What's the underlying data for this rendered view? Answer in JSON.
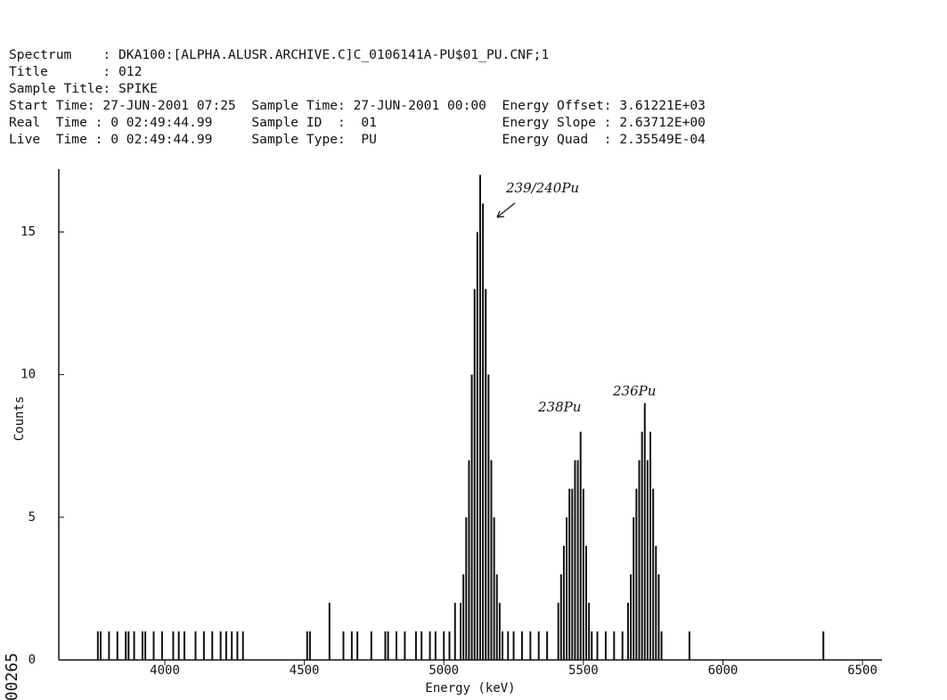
{
  "chart_data": {
    "type": "spectrum",
    "header_lines": [
      "Spectrum    : DKA100:[ALPHA.ALUSR.ARCHIVE.C]C_0106141A-PU$01_PU.CNF;1",
      "Title       : 012",
      "Sample Title: SPIKE",
      "Start Time: 27-JUN-2001 07:25  Sample Time: 27-JUN-2001 00:00  Energy Offset: 3.61221E+03",
      "Real  Time : 0 02:49:44.99     Sample ID  :  01                Energy Slope : 2.63712E+00",
      "Live  Time : 0 02:49:44.99     Sample Type:  PU                Energy Quad  : 2.35549E-04"
    ],
    "x_label": "Energy (keV)",
    "y_label": "Counts",
    "annotations": [
      "239/240Pu",
      "238Pu",
      "236Pu",
      "00265"
    ],
    "color": "#111111",
    "xlim": [
      3620,
      6570
    ],
    "ylim": [
      0,
      17.2
    ],
    "xticks": [
      4000,
      4500,
      5000,
      5500,
      6000,
      6500
    ],
    "yticks": [
      0,
      5,
      10,
      15
    ],
    "x": [
      3760,
      3770,
      3800,
      3830,
      3860,
      3870,
      3890,
      3920,
      3930,
      3960,
      3990,
      4030,
      4050,
      4070,
      4110,
      4140,
      4170,
      4200,
      4220,
      4240,
      4260,
      4280,
      4510,
      4520,
      4590,
      4640,
      4670,
      4690,
      4740,
      4790,
      4800,
      4830,
      4860,
      4900,
      4920,
      4950,
      4970,
      5000,
      5020,
      5040,
      5060,
      5070,
      5080,
      5090,
      5100,
      5110,
      5120,
      5130,
      5140,
      5150,
      5160,
      5170,
      5180,
      5190,
      5200,
      5210,
      5230,
      5250,
      5280,
      5310,
      5340,
      5370,
      5410,
      5420,
      5430,
      5440,
      5450,
      5460,
      5470,
      5480,
      5490,
      5500,
      5510,
      5520,
      5530,
      5550,
      5580,
      5610,
      5640,
      5660,
      5670,
      5680,
      5690,
      5700,
      5710,
      5720,
      5730,
      5740,
      5750,
      5760,
      5770,
      5780,
      5880,
      6360
    ],
    "values": [
      1,
      1,
      1,
      1,
      1,
      1,
      1,
      1,
      1,
      1,
      1,
      1,
      1,
      1,
      1,
      1,
      1,
      1,
      1,
      1,
      1,
      1,
      1,
      1,
      2,
      1,
      1,
      1,
      1,
      1,
      1,
      1,
      1,
      1,
      1,
      1,
      1,
      1,
      1,
      2,
      2,
      3,
      5,
      7,
      10,
      13,
      15,
      17,
      16,
      13,
      10,
      7,
      5,
      3,
      2,
      1,
      1,
      1,
      1,
      1,
      1,
      1,
      2,
      3,
      4,
      5,
      6,
      6,
      7,
      7,
      8,
      6,
      4,
      2,
      1,
      1,
      1,
      1,
      1,
      2,
      3,
      5,
      6,
      7,
      8,
      9,
      7,
      8,
      6,
      4,
      3,
      1,
      1,
      1
    ]
  }
}
